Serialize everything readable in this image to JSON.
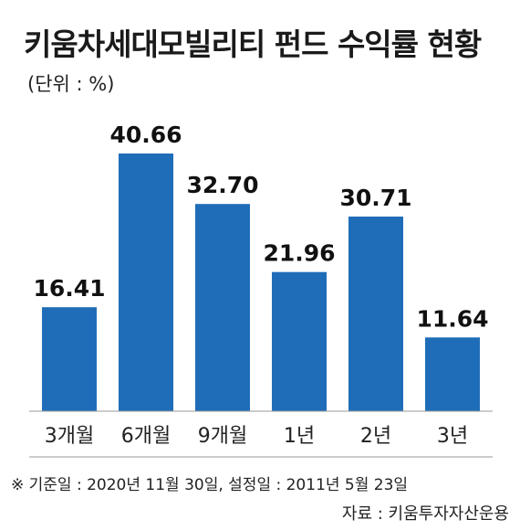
{
  "chart_data": {
    "type": "bar",
    "title": "키움차세대모빌리티 펀드 수익률 현황",
    "unit_label": "(단위 : %)",
    "categories": [
      "3개월",
      "6개월",
      "9개월",
      "1년",
      "2년",
      "3년"
    ],
    "values": [
      16.41,
      40.66,
      32.7,
      21.96,
      30.71,
      11.64
    ],
    "value_labels": [
      "16.41",
      "40.66",
      "32.70",
      "21.96",
      "30.71",
      "11.64"
    ],
    "bar_color": "#1f6db8",
    "ylim": [
      0,
      40.66
    ],
    "grid": false,
    "legend": "none"
  },
  "footnote": "※ 기준일 : 2020년 11월 30일, 설정일 : 2011년 5월 23일",
  "source": "자료 : 키움투자자산운용"
}
